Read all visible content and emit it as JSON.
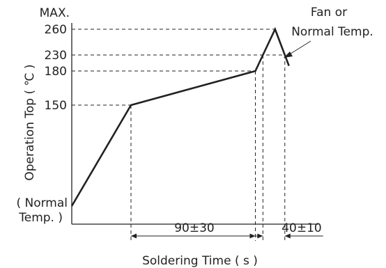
{
  "chart_data": {
    "type": "line",
    "title": "",
    "xlabel": "Soldering Time ( s )",
    "ylabel": "Operation Top ( ℃ )",
    "y_max_label": "MAX.",
    "y_min_label_line1": "( Normal",
    "y_min_label_line2": "Temp. )",
    "y_ticks": [
      {
        "value": 150,
        "label": "150"
      },
      {
        "value": 180,
        "label": "180"
      },
      {
        "value": 230,
        "label": "230"
      },
      {
        "value": 260,
        "label": "260"
      }
    ],
    "series": [
      {
        "points": [
          {
            "x": 0,
            "y": 25
          },
          {
            "x": 60,
            "y": 150
          },
          {
            "x": 186,
            "y": 180
          },
          {
            "x": 206,
            "y": 260
          },
          {
            "x": 220,
            "y": 196
          }
        ]
      }
    ],
    "annotations": {
      "fan_line1": "Fan or",
      "fan_line2": "Normal Temp.",
      "preheat_time": "90±30",
      "peak_time": "40±10"
    }
  }
}
